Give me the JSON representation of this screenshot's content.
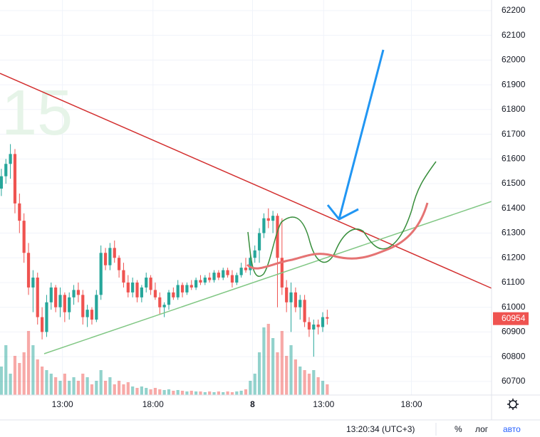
{
  "chart_data": {
    "type": "candlestick",
    "watermark": "15",
    "x": [
      0,
      1,
      2,
      3,
      4,
      5,
      6,
      7,
      8,
      9,
      10,
      11,
      12,
      13,
      14,
      15,
      16,
      17,
      18,
      19,
      20,
      21,
      22,
      23,
      24,
      25,
      26,
      27,
      28,
      29,
      30,
      31,
      32,
      33,
      34,
      35,
      36,
      37,
      38,
      39,
      40,
      41,
      42,
      43,
      44,
      45,
      46,
      47,
      48,
      49,
      50,
      51,
      52,
      53,
      54,
      55,
      56,
      57,
      58,
      59,
      60,
      61,
      62,
      63,
      64,
      65,
      66,
      67,
      68,
      69,
      70,
      71,
      72
    ],
    "open": [
      61480,
      61530,
      61580,
      61620,
      61420,
      61350,
      61220,
      61080,
      61120,
      60960,
      60900,
      61020,
      61080,
      61000,
      61050,
      60980,
      61040,
      61070,
      61050,
      60960,
      60990,
      60950,
      61050,
      61220,
      61170,
      61240,
      61200,
      61150,
      61100,
      61060,
      61100,
      61040,
      61080,
      61120,
      61070,
      61040,
      61000,
      61010,
      61060,
      61040,
      61090,
      61060,
      61090,
      61080,
      61110,
      61100,
      61120,
      61110,
      61140,
      61120,
      61150,
      61130,
      61100,
      61130,
      61160,
      61150,
      61200,
      61230,
      61300,
      61360,
      61350,
      61370,
      61200,
      61080,
      61020,
      61060,
      61000,
      61030,
      60940,
      60910,
      60930,
      60920,
      60960
    ],
    "high": [
      61560,
      61600,
      61660,
      61640,
      61460,
      61380,
      61260,
      61150,
      61140,
      61000,
      61050,
      61100,
      61090,
      61080,
      61060,
      61060,
      61090,
      61100,
      61070,
      61010,
      61000,
      61070,
      61250,
      61240,
      61260,
      61270,
      61210,
      61180,
      61130,
      61120,
      61110,
      61090,
      61140,
      61130,
      61100,
      61060,
      61020,
      61070,
      61080,
      61110,
      61100,
      61100,
      61110,
      61120,
      61130,
      61130,
      61140,
      61150,
      61150,
      61160,
      61160,
      61150,
      61140,
      61180,
      61200,
      61220,
      61250,
      61320,
      61380,
      61400,
      61390,
      61380,
      61360,
      61110,
      61100,
      61080,
      61050,
      61050,
      60960,
      60950,
      60950,
      60980,
      60990
    ],
    "low": [
      61450,
      61500,
      61520,
      61380,
      61300,
      61180,
      61050,
      60980,
      60930,
      60870,
      60880,
      60990,
      60980,
      60960,
      60940,
      60950,
      61010,
      61020,
      60930,
      60920,
      60930,
      60940,
      61030,
      61150,
      61150,
      61180,
      61120,
      61080,
      61040,
      61040,
      61020,
      61020,
      61060,
      61050,
      61030,
      60970,
      60960,
      60990,
      61030,
      61030,
      61040,
      61050,
      61070,
      61070,
      61090,
      61090,
      61100,
      61100,
      61110,
      61110,
      61120,
      61080,
      61090,
      61120,
      61140,
      61130,
      61180,
      61180,
      61280,
      61320,
      61300,
      61000,
      61050,
      60980,
      60900,
      60980,
      60950,
      60920,
      60880,
      60800,
      60890,
      60900,
      60930
    ],
    "close": [
      61530,
      61580,
      61620,
      61420,
      61350,
      61220,
      61080,
      61120,
      60960,
      60900,
      61020,
      61080,
      61000,
      61050,
      60980,
      61040,
      61070,
      61050,
      60960,
      60990,
      60950,
      61050,
      61220,
      61170,
      61240,
      61200,
      61150,
      61100,
      61060,
      61100,
      61040,
      61080,
      61120,
      61070,
      61040,
      61000,
      61010,
      61060,
      61040,
      61090,
      61060,
      61090,
      61080,
      61110,
      61100,
      61120,
      61110,
      61140,
      61120,
      61150,
      61130,
      61100,
      61130,
      61160,
      61150,
      61200,
      61230,
      61300,
      61360,
      61350,
      61370,
      61200,
      61080,
      61020,
      61060,
      61000,
      61030,
      60940,
      60910,
      60930,
      60920,
      60960,
      60954
    ],
    "volume": [
      40,
      70,
      30,
      55,
      45,
      60,
      90,
      70,
      50,
      40,
      35,
      30,
      25,
      20,
      30,
      20,
      25,
      20,
      30,
      25,
      15,
      20,
      35,
      20,
      25,
      15,
      20,
      15,
      18,
      12,
      10,
      12,
      10,
      8,
      10,
      8,
      7,
      8,
      6,
      7,
      6,
      5,
      6,
      5,
      5,
      4,
      5,
      4,
      5,
      4,
      5,
      4,
      5,
      6,
      8,
      20,
      30,
      60,
      95,
      100,
      80,
      60,
      90,
      55,
      70,
      50,
      40,
      35,
      30,
      35,
      25,
      20,
      15
    ],
    "up_color": "#26a69a",
    "down_color": "#ef5350",
    "xlim": [
      -0.3,
      108.3
    ],
    "xticks": [
      {
        "value": 13.5,
        "label": "13:00"
      },
      {
        "value": 33.5,
        "label": "18:00"
      },
      {
        "value": 55.5,
        "label": "8"
      },
      {
        "value": 71.2,
        "label": "13:00"
      },
      {
        "value": 90.6,
        "label": "18:00"
      }
    ],
    "ylim": [
      60645,
      62243
    ],
    "yticks": [
      60700,
      60800,
      60900,
      61000,
      61100,
      61200,
      61300,
      61400,
      61500,
      61600,
      61700,
      61800,
      61900,
      62000,
      62100,
      62200
    ],
    "grid": true
  },
  "status_bar": {
    "time": "13:20:34 (UTC+3)",
    "percent": "%",
    "log": "лог",
    "auto": "авто"
  }
}
